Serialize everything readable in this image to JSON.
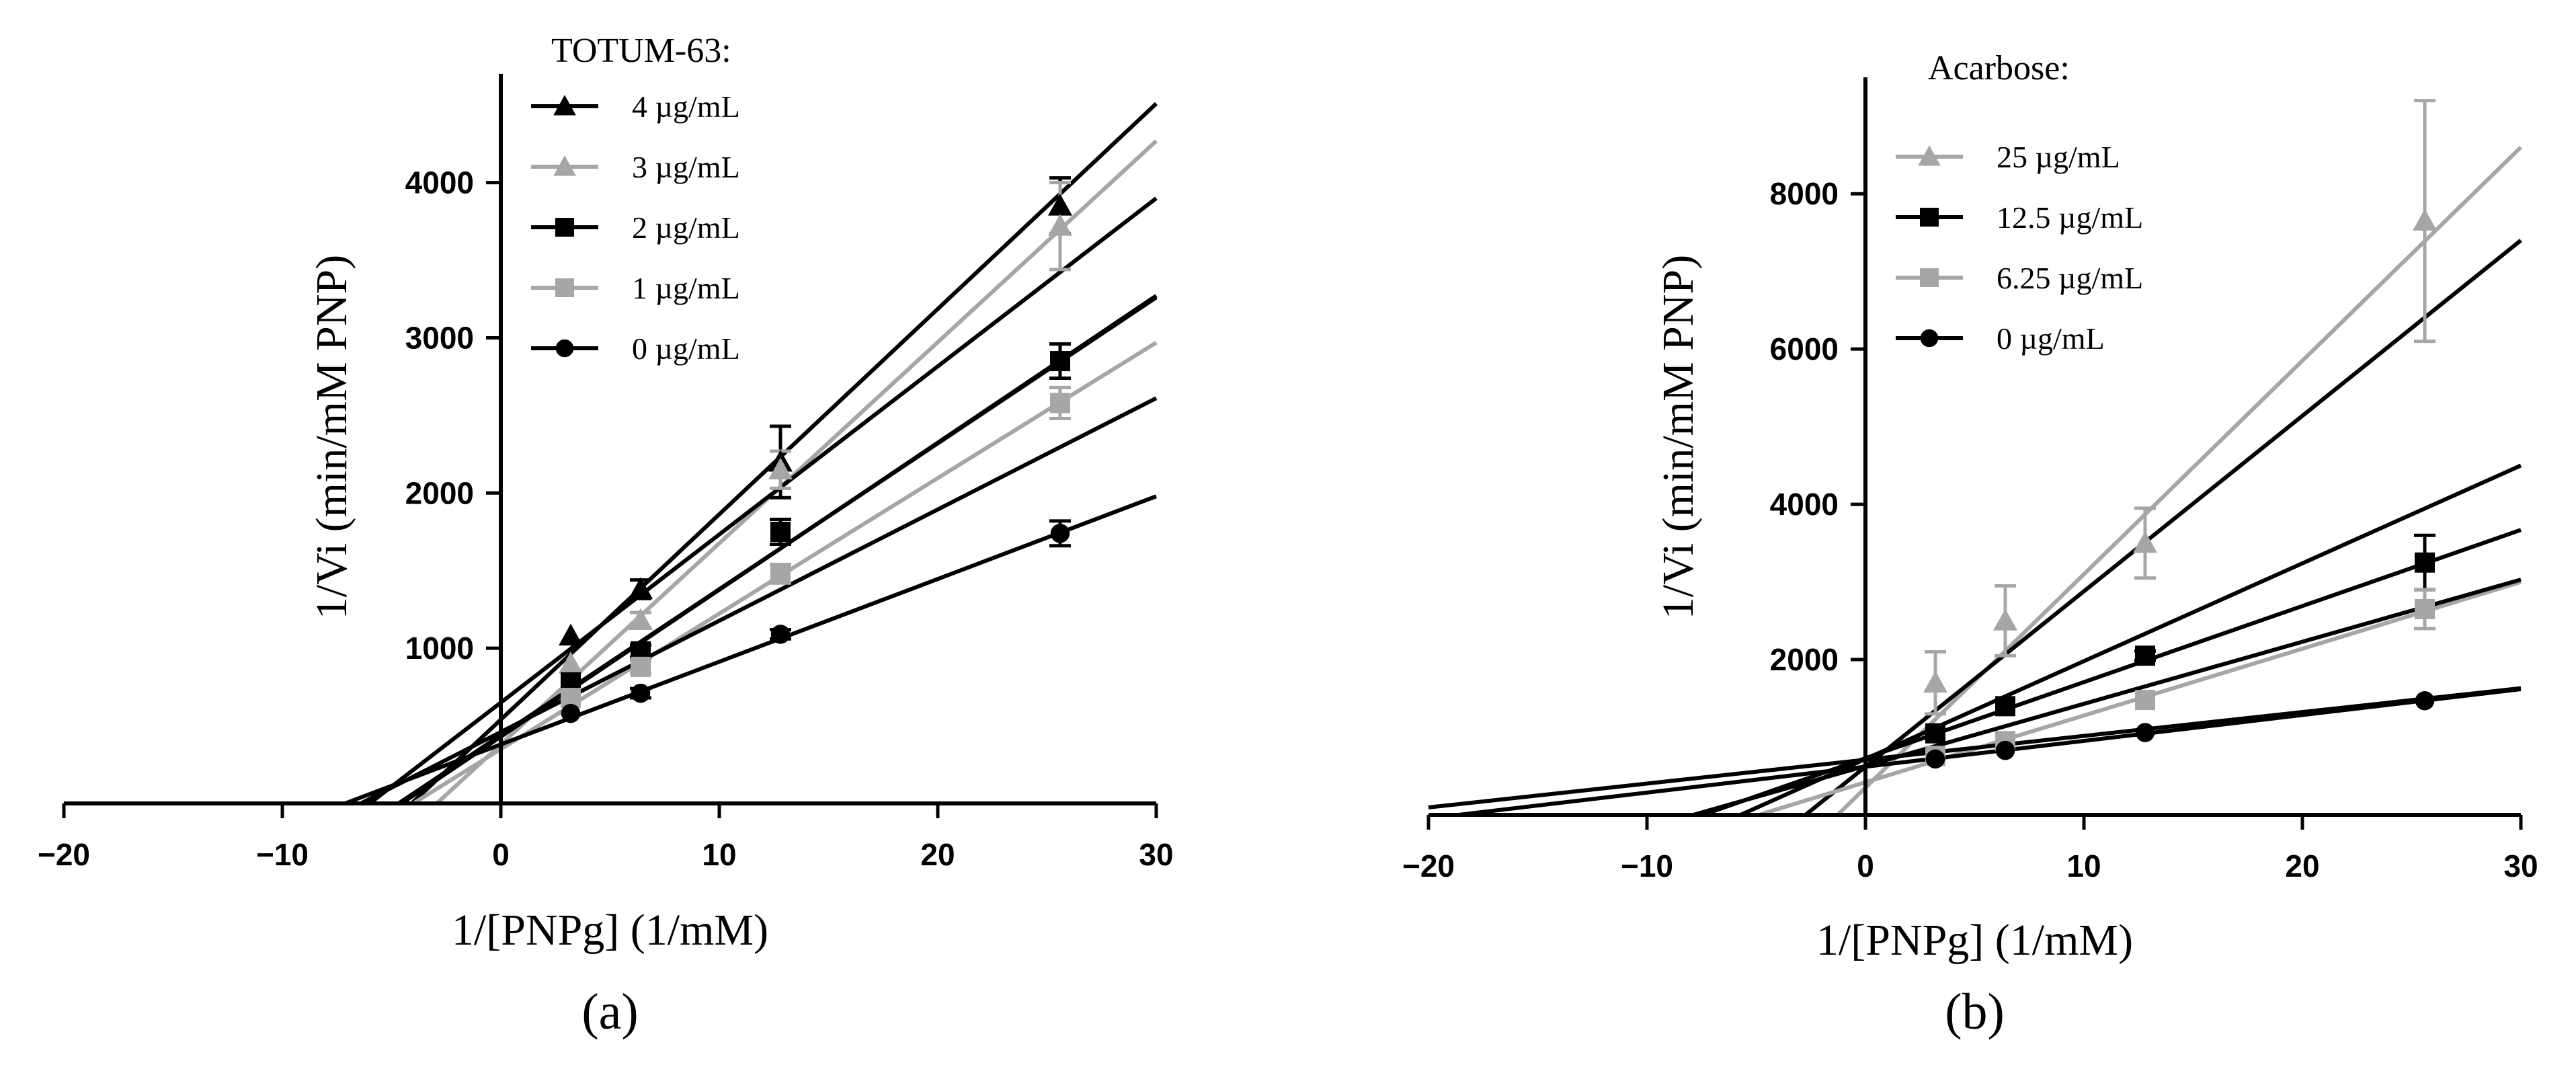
{
  "chart_data": [
    {
      "type": "line",
      "panel_label": "(a)",
      "xlabel": "1/[PNPg] (1/mM)",
      "ylabel": "1/Vi (min/mM PNP)",
      "xlim": [
        -20,
        30
      ],
      "ylim": [
        0,
        4700
      ],
      "xticks": [
        -20,
        -10,
        0,
        10,
        20,
        30
      ],
      "xtick_labels": [
        "−20",
        "−10",
        "0",
        "10",
        "20",
        "30"
      ],
      "yticks": [
        1000,
        2000,
        3000,
        4000
      ],
      "ytick_labels": [
        "1000",
        "2000",
        "3000",
        "4000"
      ],
      "grid": false,
      "legend_title": "TOTUM-63:",
      "legend_position": "top-right",
      "series": [
        {
          "name": "4 µg/mL",
          "color": "#000000",
          "marker": "triangle",
          "x": [
            3.2,
            6.4,
            12.8,
            25.6
          ],
          "y": [
            1080,
            1380,
            2200,
            3850
          ],
          "yerr": [
            0,
            60,
            230,
            180
          ],
          "lines": [
            {
              "intercept": 540,
              "slope": 132.3
            }
          ]
        },
        {
          "name": "3 µg/mL",
          "color": "#a6a6a6",
          "marker": "triangle",
          "x": [
            3.2,
            6.4,
            12.8,
            25.6
          ],
          "y": [
            900,
            1180,
            2150,
            3720
          ],
          "yerr": [
            0,
            50,
            120,
            280
          ],
          "lines": [
            {
              "intercept": 380,
              "slope": 129.6
            }
          ]
        },
        {
          "name": "2 µg/mL",
          "color": "#000000",
          "marker": "square",
          "x": [
            3.2,
            6.4,
            12.8,
            25.6
          ],
          "y": [
            780,
            980,
            1750,
            2850
          ],
          "yerr": [
            0,
            40,
            80,
            110
          ],
          "lines": [
            {
              "intercept": 650,
              "slope": 108.3
            },
            {
              "intercept": 430,
              "slope": 94.7
            },
            {
              "intercept": 440,
              "slope": 94.0
            }
          ]
        },
        {
          "name": "1 µg/mL",
          "color": "#a6a6a6",
          "marker": "square",
          "x": [
            3.2,
            6.4,
            12.8,
            25.6
          ],
          "y": [
            680,
            880,
            1480,
            2580
          ],
          "yerr": [
            0,
            40,
            60,
            100
          ],
          "lines": [
            {
              "intercept": 350,
              "slope": 87.3
            }
          ]
        },
        {
          "name": "0 µg/mL",
          "color": "#000000",
          "marker": "circle",
          "x": [
            3.2,
            6.4,
            12.8,
            25.6
          ],
          "y": [
            580,
            710,
            1090,
            1740
          ],
          "yerr": [
            0,
            30,
            30,
            80
          ],
          "lines": [
            {
              "intercept": 380,
              "slope": 53.3
            },
            {
              "intercept": 460,
              "slope": 71.7
            }
          ]
        }
      ]
    },
    {
      "type": "line",
      "panel_label": "(b)",
      "xlabel": "1/[PNPg] (1/mM)",
      "ylabel": "1/Vi (min/mM PNP)",
      "xlim": [
        -20,
        30
      ],
      "ylim": [
        0,
        9500
      ],
      "xticks": [
        -20,
        -10,
        0,
        10,
        20,
        30
      ],
      "xtick_labels": [
        "−20",
        "−10",
        "0",
        "10",
        "20",
        "30"
      ],
      "yticks": [
        2000,
        4000,
        6000,
        8000
      ],
      "ytick_labels": [
        "2000",
        "4000",
        "6000",
        "8000"
      ],
      "grid": false,
      "legend_title": "Acarbose:",
      "legend_position": "top-left",
      "series": [
        {
          "name": "25 µg/mL",
          "color": "#a6a6a6",
          "marker": "triangle",
          "x": [
            3.2,
            6.4,
            12.8,
            25.6
          ],
          "y": [
            1700,
            2500,
            3500,
            7650
          ],
          "yerr": [
            400,
            450,
            450,
            1550
          ],
          "lines": [
            {
              "intercept": 350,
              "slope": 275.0
            }
          ]
        },
        {
          "name": "12.5 µg/mL",
          "color": "#000000",
          "marker": "square",
          "x": [
            3.2,
            6.4,
            12.8,
            25.6
          ],
          "y": [
            1050,
            1400,
            2050,
            3250
          ],
          "yerr": [
            0,
            0,
            60,
            350
          ],
          "lines": [
            {
              "intercept": 620,
              "slope": 226.0
            },
            {
              "intercept": 720,
              "slope": 126.0
            },
            {
              "intercept": 730,
              "slope": 98.0
            }
          ]
        },
        {
          "name": "6.25 µg/mL",
          "color": "#a6a6a6",
          "marker": "square",
          "x": [
            3.2,
            6.4,
            12.8,
            25.6
          ],
          "y": [
            760,
            950,
            1480,
            2650
          ],
          "yerr": [
            0,
            0,
            0,
            250
          ],
          "lines": [
            {
              "intercept": 420,
              "slope": 86.0
            }
          ]
        },
        {
          "name": "0 µg/mL",
          "color": "#000000",
          "marker": "circle",
          "x": [
            3.2,
            6.4,
            12.8,
            25.6
          ],
          "y": [
            720,
            830,
            1060,
            1470
          ],
          "yerr": [
            0,
            0,
            0,
            0
          ],
          "lines": [
            {
              "intercept": 620,
              "slope": 33.3
            },
            {
              "intercept": 710,
              "slope": 30.7
            },
            {
              "intercept": 630,
              "slope": 80.0
            }
          ]
        }
      ]
    }
  ]
}
